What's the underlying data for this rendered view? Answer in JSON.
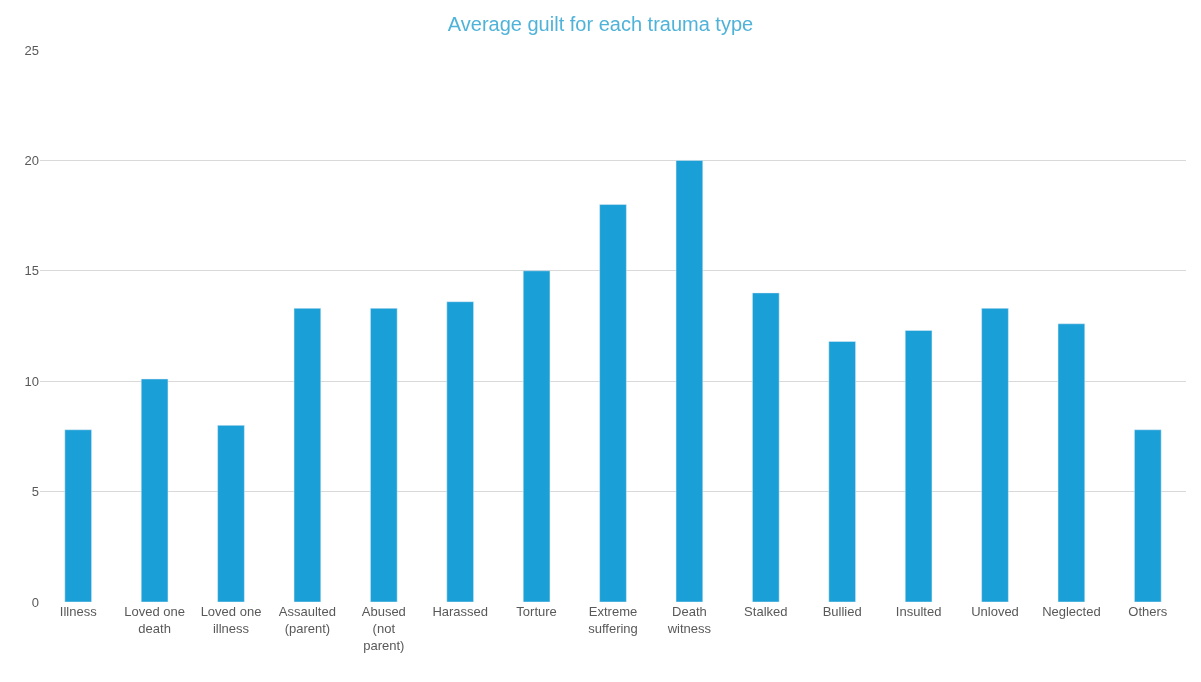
{
  "chart_data": {
    "type": "bar",
    "title": "Average guilt for each trauma type",
    "categories": [
      "Illness",
      "Loved one death",
      "Loved one illness",
      "Assaulted (parent)",
      "Abused (not parent)",
      "Harassed",
      "Torture",
      "Extreme suffering",
      "Death witness",
      "Stalked",
      "Bullied",
      "Insulted",
      "Unloved",
      "Neglected",
      "Others"
    ],
    "values": [
      7.8,
      10.1,
      8.0,
      13.3,
      13.3,
      13.6,
      15.0,
      18.0,
      20.0,
      14.0,
      11.8,
      12.3,
      13.3,
      12.6,
      7.8
    ],
    "color": "#1a9fd6",
    "ylim": [
      0,
      25
    ],
    "yticks": [
      0,
      5,
      10,
      15,
      20,
      25
    ],
    "grid": "y",
    "legend": false
  }
}
